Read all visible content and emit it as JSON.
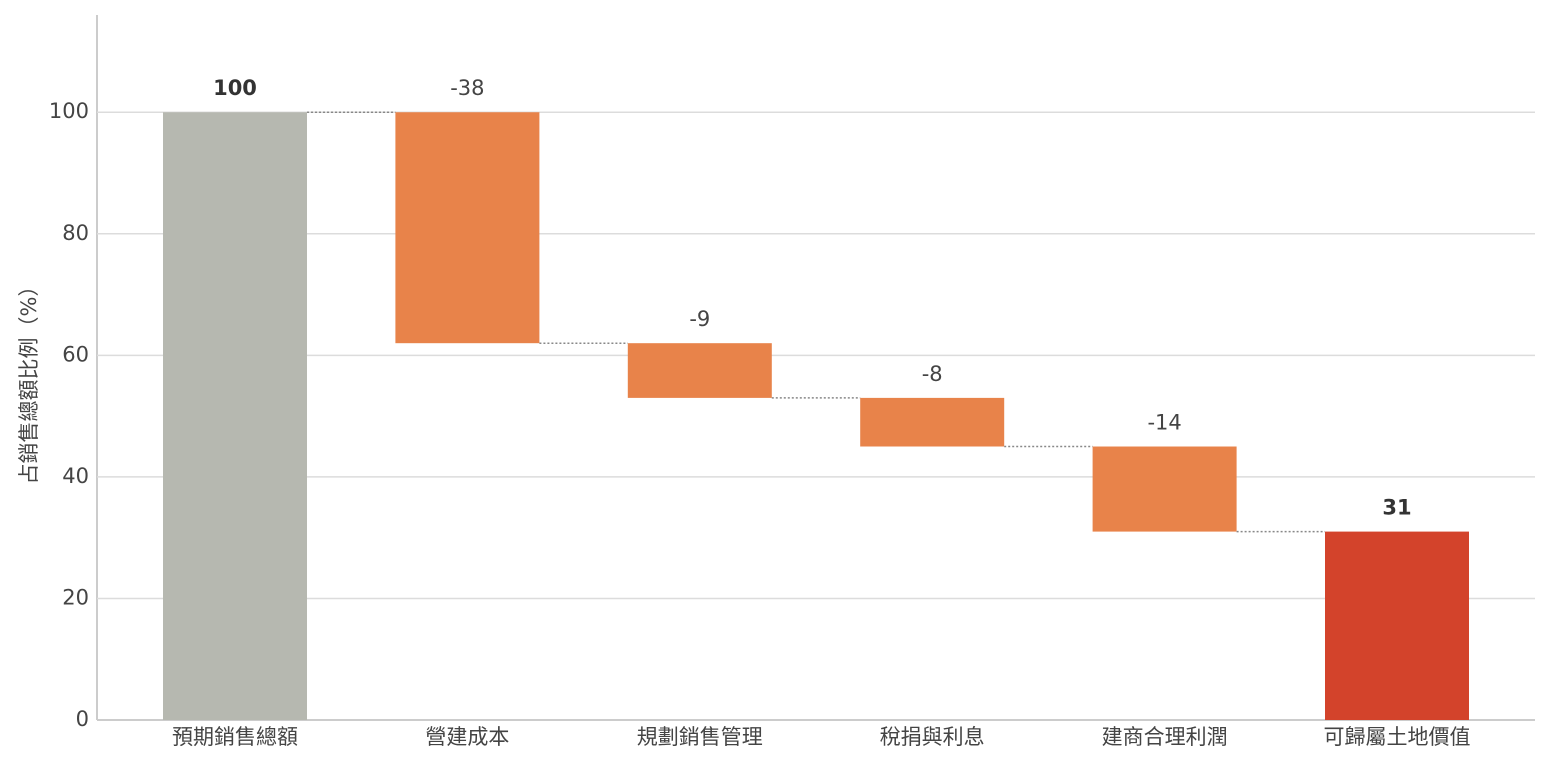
{
  "chart_data": {
    "type": "waterfall",
    "y_label": "占銷售總額比例（%）",
    "categories": [
      "預期銷售總額",
      "營建成本",
      "規劃銷售管理",
      "稅捐與利息",
      "建商合理利潤",
      "可歸屬土地價值"
    ],
    "values": [
      100,
      -38,
      -9,
      -8,
      -14,
      31
    ],
    "measure": [
      "absolute",
      "relative",
      "relative",
      "relative",
      "relative",
      "total"
    ],
    "colors": [
      "#b6b8b0",
      "#e8834a",
      "#e8834a",
      "#e8834a",
      "#e8834a",
      "#d3432b"
    ],
    "ylim": [
      0,
      116
    ],
    "yticks": [
      0,
      20,
      40,
      60,
      80,
      100
    ],
    "grid": true
  }
}
